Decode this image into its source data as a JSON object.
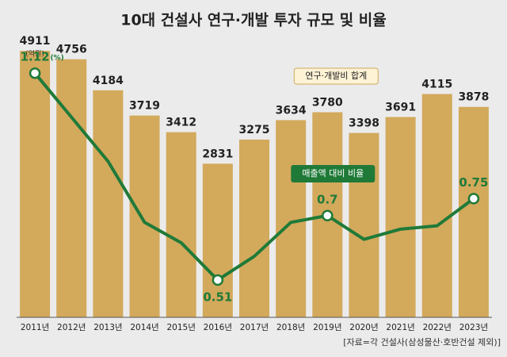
{
  "chart_data": {
    "type": "bar-line",
    "title": "10대 건설사 연구·개발 투자 규모 및 비율",
    "source": "[자료=각 건설사(삼성물산·호반건설 제외)]",
    "categories": [
      "2011년",
      "2012년",
      "2013년",
      "2014년",
      "2015년",
      "2016년",
      "2017년",
      "2018년",
      "2019년",
      "2020년",
      "2021년",
      "2022년",
      "2023년"
    ],
    "series": [
      {
        "name": "연구·개발비 합계",
        "type": "bar",
        "color": "#d3a95c",
        "unit": "(억원)",
        "values": [
          4911,
          4756,
          4184,
          3719,
          3412,
          2831,
          3275,
          3634,
          3780,
          3398,
          3691,
          4115,
          3878
        ]
      },
      {
        "name": "매출액 대비 비율",
        "type": "line",
        "axis": "y2",
        "color": "#1f7a38",
        "unit": "(%)",
        "values": [
          1.12,
          0.99,
          0.86,
          0.68,
          0.62,
          0.51,
          0.58,
          0.68,
          0.7,
          0.63,
          0.66,
          0.67,
          0.75
        ],
        "value_labels": [
          "1.12",
          null,
          null,
          null,
          null,
          "0.51",
          null,
          null,
          "0.7",
          null,
          null,
          null,
          "0.75"
        ]
      }
    ],
    "ylim": [
      0,
      5000
    ],
    "y2lim": [
      0.4,
      1.2
    ]
  }
}
